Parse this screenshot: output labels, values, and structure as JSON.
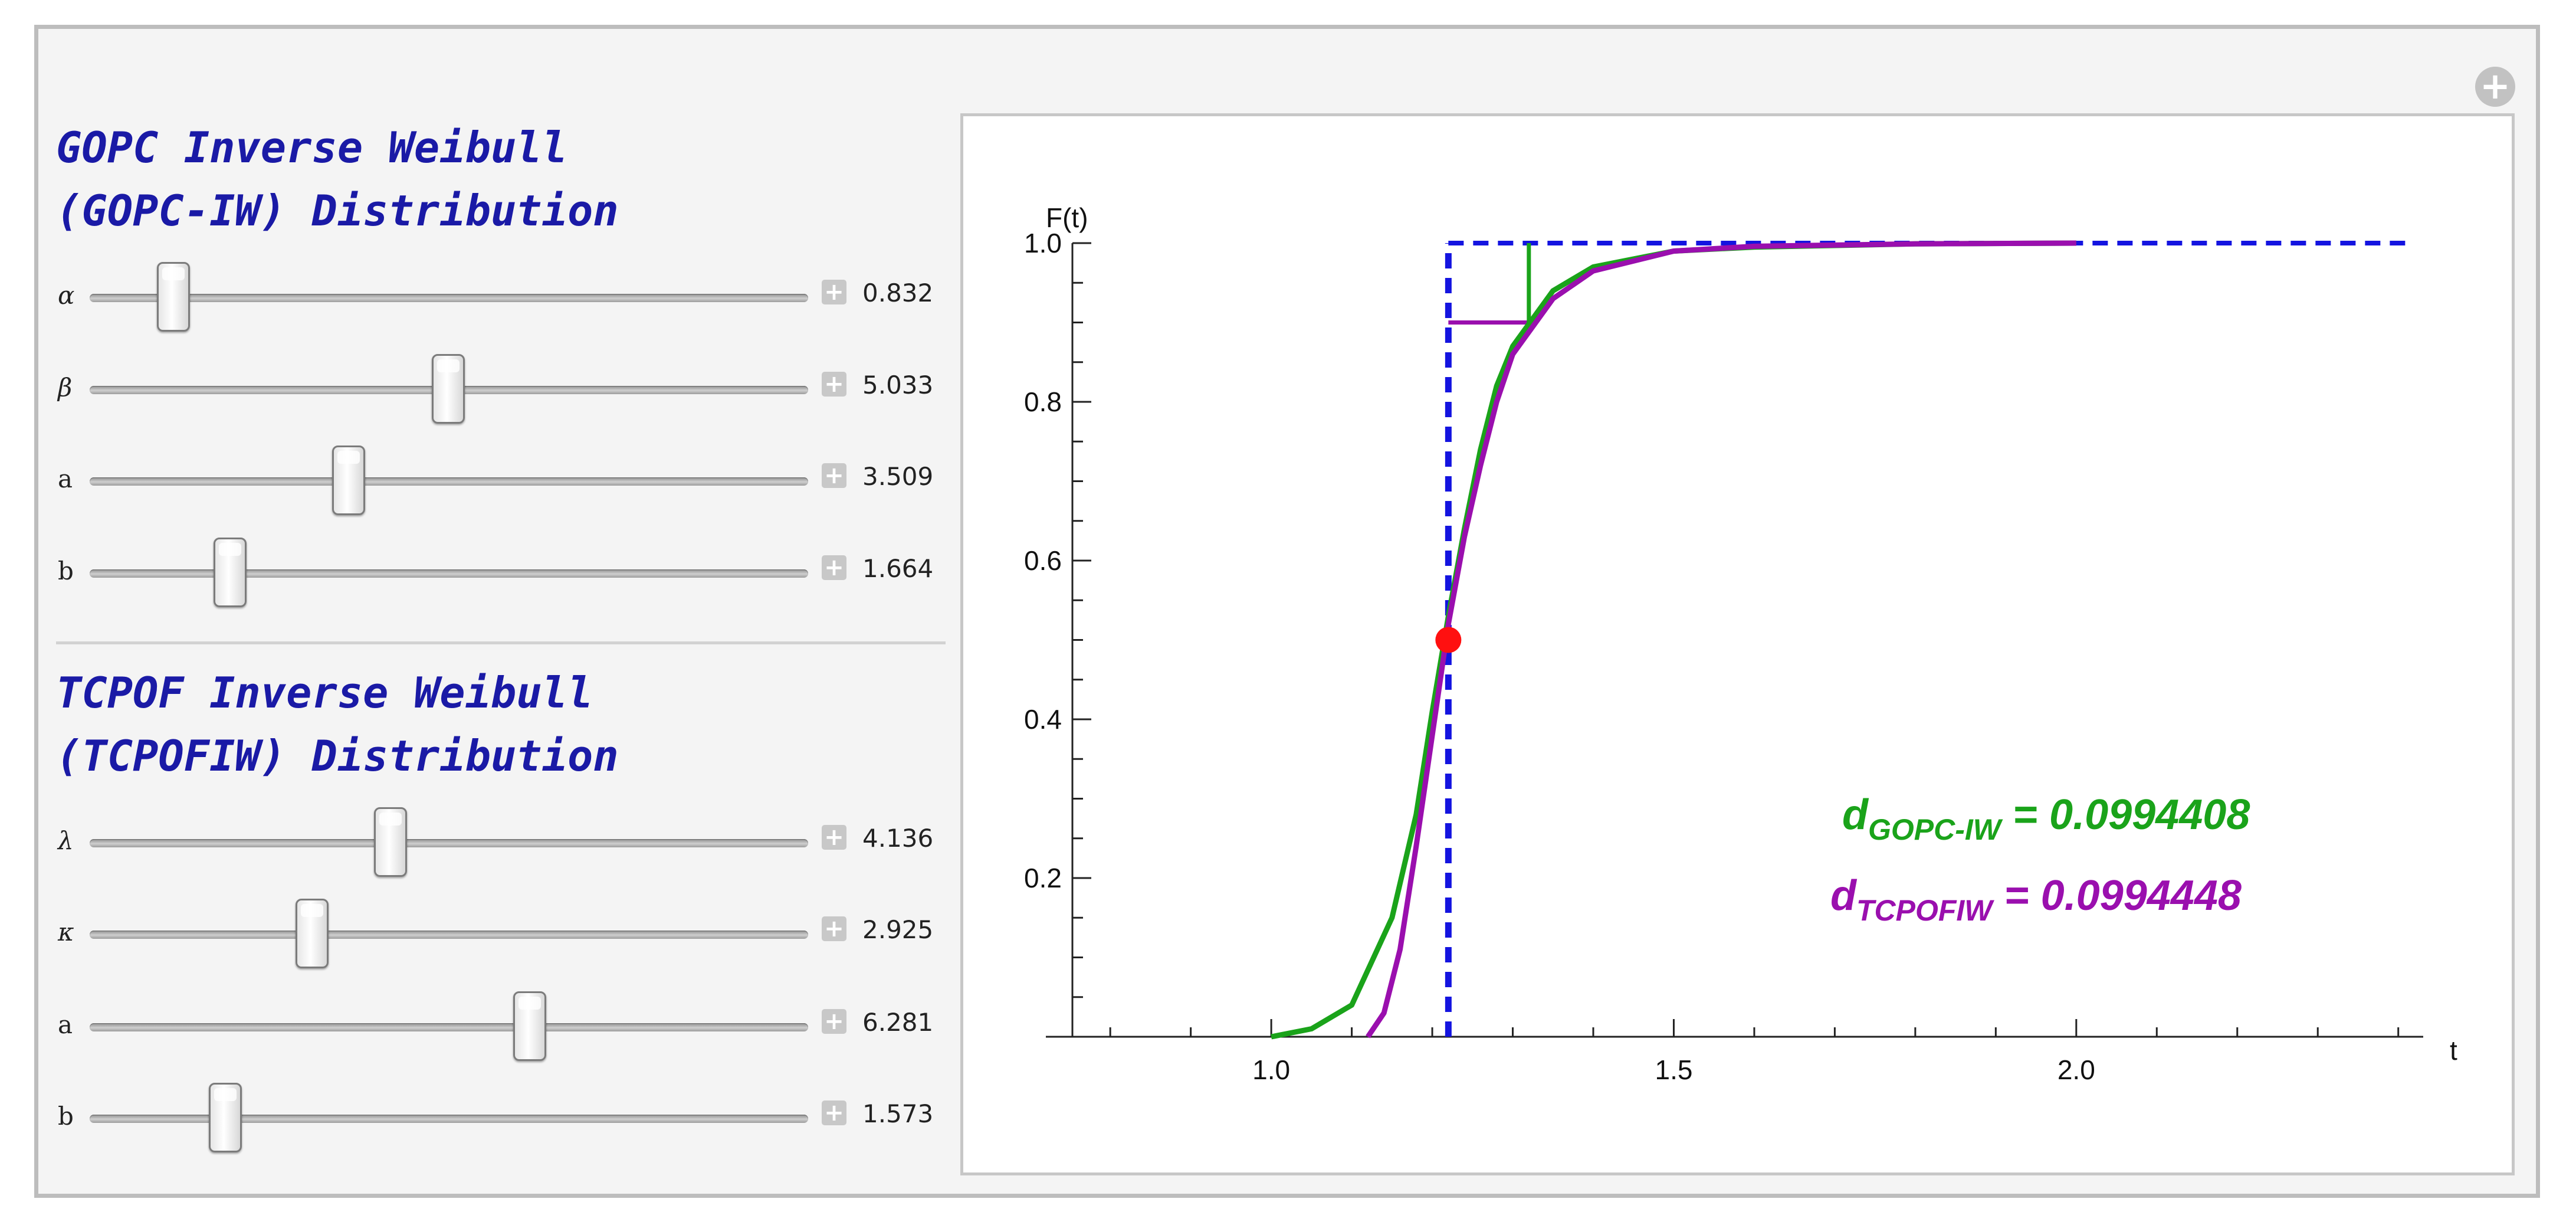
{
  "sections": [
    {
      "title_line1": "GOPC Inverse Weibull",
      "title_line2": "(GOPC-IW) Distribution",
      "params": [
        {
          "label": "α",
          "value": "0.832",
          "level": 0.11
        },
        {
          "label": "β",
          "value": "5.033",
          "level": 0.5
        },
        {
          "label": "a",
          "value": "3.509",
          "level": 0.36
        },
        {
          "label": "b",
          "value": "1.664",
          "level": 0.19
        }
      ]
    },
    {
      "title_line1": "TCPOF Inverse Weibull",
      "title_line2": "(TCPOFIW) Distribution",
      "params": [
        {
          "label": "λ",
          "value": "4.136",
          "level": 0.43
        },
        {
          "label": "κ",
          "value": "2.925",
          "level": 0.31
        },
        {
          "label": "a",
          "value": "6.281",
          "level": 0.62
        },
        {
          "label": "b",
          "value": "1.573",
          "level": 0.18
        }
      ]
    }
  ],
  "controls": {
    "expand_icon": "plus-circle-icon",
    "slider_expand_icon": "plus-square-icon"
  },
  "chart_data": {
    "type": "line",
    "xlabel": "t",
    "ylabel": "F(t)",
    "xlim": [
      0.72,
      2.42
    ],
    "ylim": [
      0,
      1.0
    ],
    "x_ticks": [
      "1.0",
      "1.5",
      "2.0"
    ],
    "y_ticks": [
      "0.2",
      "0.4",
      "0.6",
      "0.8",
      "1.0"
    ],
    "series": [
      {
        "color": "#1aa31a",
        "x": [
          1.0,
          1.05,
          1.1,
          1.15,
          1.18,
          1.2,
          1.22,
          1.24,
          1.26,
          1.28,
          1.3,
          1.35,
          1.4,
          1.5,
          1.6,
          1.8,
          2.0
        ],
        "y": [
          0.0,
          0.01,
          0.04,
          0.15,
          0.28,
          0.41,
          0.53,
          0.64,
          0.74,
          0.82,
          0.87,
          0.94,
          0.97,
          0.99,
          0.995,
          0.999,
          1.0
        ]
      },
      {
        "color": "#9a0fae",
        "x": [
          1.12,
          1.14,
          1.16,
          1.18,
          1.2,
          1.22,
          1.24,
          1.26,
          1.28,
          1.3,
          1.35,
          1.4,
          1.5,
          1.6,
          1.8,
          2.0
        ],
        "y": [
          0.0,
          0.03,
          0.11,
          0.24,
          0.38,
          0.52,
          0.63,
          0.72,
          0.8,
          0.86,
          0.93,
          0.965,
          0.99,
          0.996,
          0.999,
          1.0
        ]
      }
    ],
    "reference_step": {
      "x": 1.22,
      "color": "#1414e0"
    },
    "square": {
      "x": [
        1.22,
        1.32
      ],
      "y": [
        0.9,
        1.0
      ],
      "color_left": "#1aa31a",
      "color_right": "#9a0fae"
    },
    "median_point": {
      "x": 1.22,
      "y": 0.5,
      "color": "#ff1010"
    },
    "annotations": [
      {
        "main": "d",
        "sub": "GOPC-IW",
        "rest": " = 0.0994408",
        "color": "#1aa31a"
      },
      {
        "main": "d",
        "sub": "TCPOFIW",
        "rest": " = 0.0994448",
        "color": "#9a0fae"
      }
    ]
  }
}
